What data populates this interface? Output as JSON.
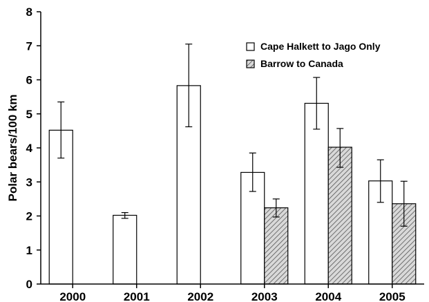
{
  "chart_data": {
    "type": "bar",
    "title": "",
    "xlabel": "",
    "ylabel": "Polar bears/100 km",
    "ylim": [
      0,
      8
    ],
    "yticks": [
      0,
      1,
      2,
      3,
      4,
      5,
      6,
      7,
      8
    ],
    "categories": [
      "2000",
      "2001",
      "2002",
      "2003",
      "2004",
      "2005"
    ],
    "legend_position": "top-right",
    "series": [
      {
        "name": "Cape Halkett to Jago Only",
        "fill": "#ffffff",
        "pattern": "none",
        "values": [
          4.52,
          2.02,
          5.83,
          3.28,
          5.31,
          3.03
        ],
        "err_low": [
          3.7,
          1.93,
          4.62,
          2.72,
          4.55,
          2.4
        ],
        "err_high": [
          5.35,
          2.1,
          7.05,
          3.85,
          6.07,
          3.65
        ]
      },
      {
        "name": "Barrow to Canada",
        "fill": "#cccccc",
        "pattern": "diagonal-hatch",
        "values": [
          null,
          null,
          null,
          2.24,
          4.02,
          2.36
        ],
        "err_low": [
          null,
          null,
          null,
          1.97,
          3.43,
          1.7
        ],
        "err_high": [
          null,
          null,
          null,
          2.5,
          4.57,
          3.02
        ]
      }
    ]
  }
}
